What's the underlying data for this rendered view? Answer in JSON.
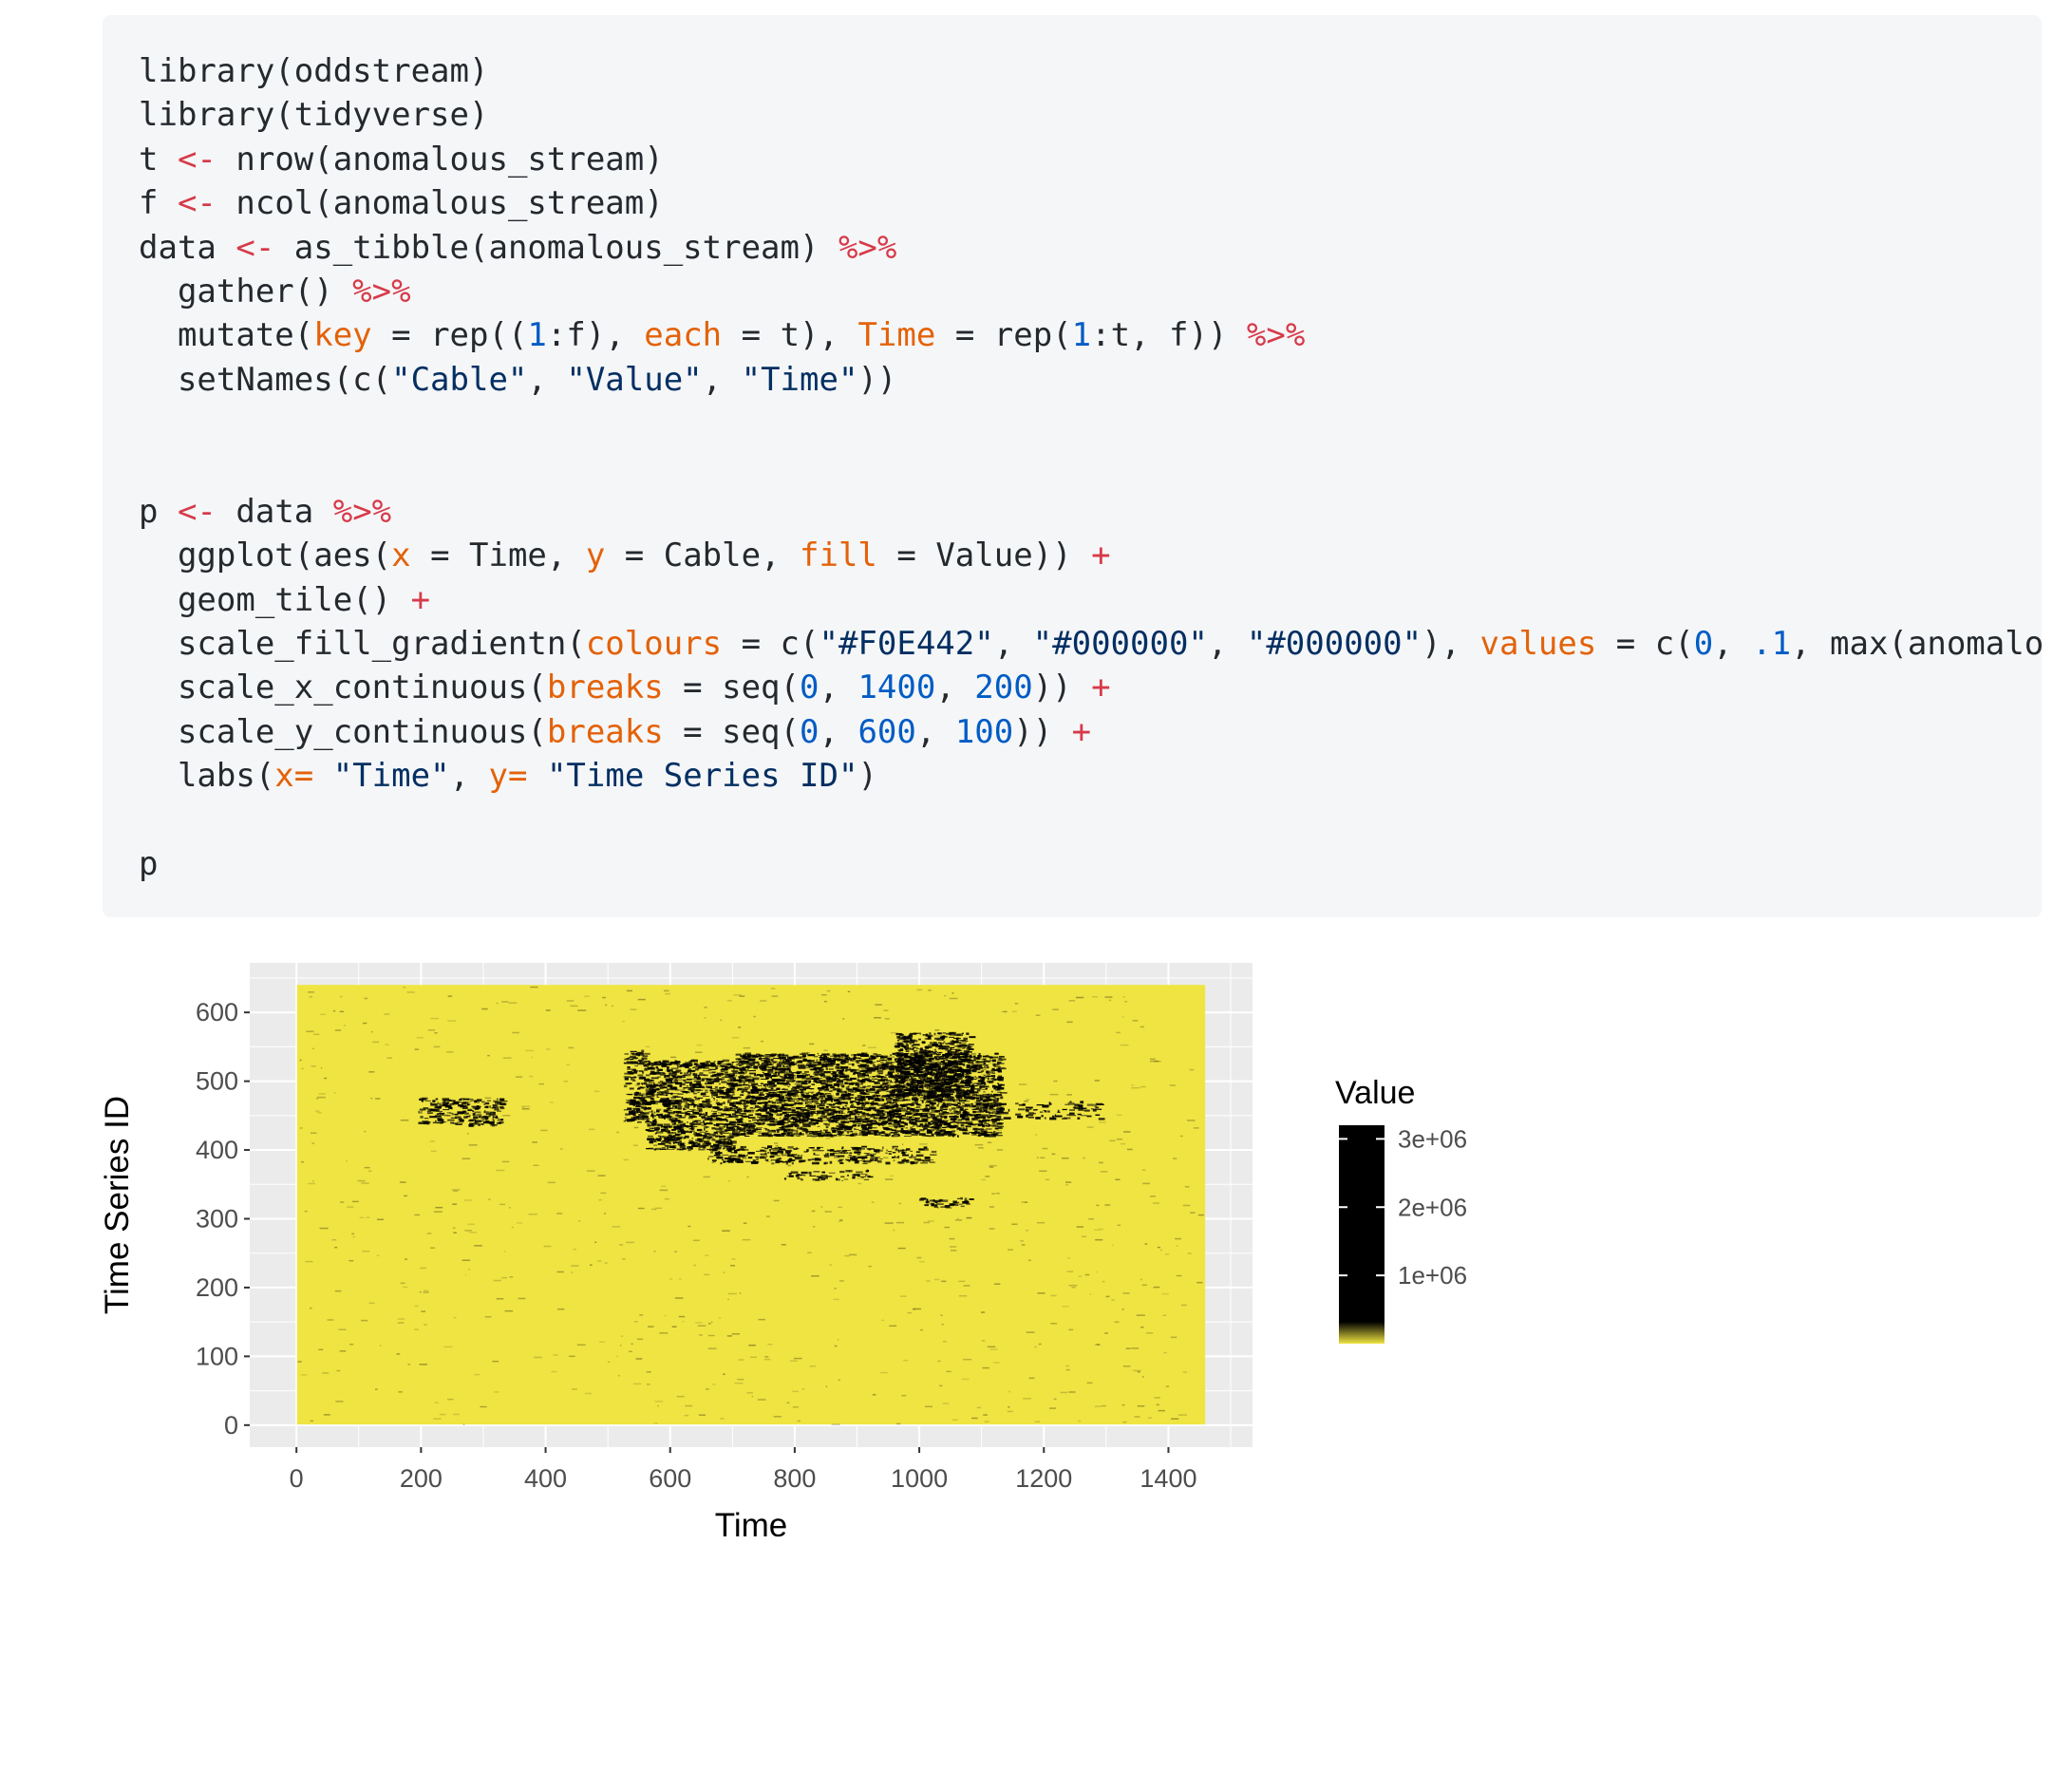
{
  "code": {
    "lines": [
      [
        {
          "t": "library(oddstream)"
        }
      ],
      [
        {
          "t": "library(tidyverse)"
        }
      ],
      [
        {
          "t": "t "
        },
        {
          "t": "<-",
          "c": "kw"
        },
        {
          "t": " nrow(anomalous_stream)"
        }
      ],
      [
        {
          "t": "f "
        },
        {
          "t": "<-",
          "c": "kw"
        },
        {
          "t": " ncol(anomalous_stream)"
        }
      ],
      [
        {
          "t": "data "
        },
        {
          "t": "<-",
          "c": "kw"
        },
        {
          "t": " as_tibble(anomalous_stream) "
        },
        {
          "t": "%>%",
          "c": "kw"
        }
      ],
      [
        {
          "t": "  gather() "
        },
        {
          "t": "%>%",
          "c": "kw"
        }
      ],
      [
        {
          "t": "  mutate("
        },
        {
          "t": "key",
          "c": "arg"
        },
        {
          "t": " = rep(("
        },
        {
          "t": "1",
          "c": "num"
        },
        {
          "t": ":f), "
        },
        {
          "t": "each",
          "c": "arg"
        },
        {
          "t": " = t), "
        },
        {
          "t": "Time",
          "c": "arg"
        },
        {
          "t": " = rep("
        },
        {
          "t": "1",
          "c": "num"
        },
        {
          "t": ":t, f)) "
        },
        {
          "t": "%>%",
          "c": "kw"
        }
      ],
      [
        {
          "t": "  setNames(c("
        },
        {
          "t": "\"Cable\"",
          "c": "str"
        },
        {
          "t": ", "
        },
        {
          "t": "\"Value\"",
          "c": "str"
        },
        {
          "t": ", "
        },
        {
          "t": "\"Time\"",
          "c": "str"
        },
        {
          "t": "))"
        }
      ],
      [],
      [],
      [
        {
          "t": "p "
        },
        {
          "t": "<-",
          "c": "kw"
        },
        {
          "t": " data "
        },
        {
          "t": "%>%",
          "c": "kw"
        }
      ],
      [
        {
          "t": "  ggplot(aes("
        },
        {
          "t": "x",
          "c": "arg"
        },
        {
          "t": " = Time, "
        },
        {
          "t": "y",
          "c": "arg"
        },
        {
          "t": " = Cable, "
        },
        {
          "t": "fill",
          "c": "arg"
        },
        {
          "t": " = Value)) "
        },
        {
          "t": "+",
          "c": "kw"
        }
      ],
      [
        {
          "t": "  geom_tile() "
        },
        {
          "t": "+",
          "c": "kw"
        }
      ],
      [
        {
          "t": "  scale_fill_gradientn("
        },
        {
          "t": "colours",
          "c": "arg"
        },
        {
          "t": " = c("
        },
        {
          "t": "\"#F0E442\"",
          "c": "str"
        },
        {
          "t": ", "
        },
        {
          "t": "\"#000000\"",
          "c": "str"
        },
        {
          "t": ", "
        },
        {
          "t": "\"#000000\"",
          "c": "str"
        },
        {
          "t": "), "
        },
        {
          "t": "values",
          "c": "arg"
        },
        {
          "t": " = c("
        },
        {
          "t": "0",
          "c": "num"
        },
        {
          "t": ", "
        },
        {
          "t": ".1",
          "c": "num"
        },
        {
          "t": ", max(anomalous_stream"
        }
      ],
      [
        {
          "t": "  scale_x_continuous("
        },
        {
          "t": "breaks",
          "c": "arg"
        },
        {
          "t": " = seq("
        },
        {
          "t": "0",
          "c": "num"
        },
        {
          "t": ", "
        },
        {
          "t": "1400",
          "c": "num"
        },
        {
          "t": ", "
        },
        {
          "t": "200",
          "c": "num"
        },
        {
          "t": ")) "
        },
        {
          "t": "+",
          "c": "kw"
        }
      ],
      [
        {
          "t": "  scale_y_continuous("
        },
        {
          "t": "breaks",
          "c": "arg"
        },
        {
          "t": " = seq("
        },
        {
          "t": "0",
          "c": "num"
        },
        {
          "t": ", "
        },
        {
          "t": "600",
          "c": "num"
        },
        {
          "t": ", "
        },
        {
          "t": "100",
          "c": "num"
        },
        {
          "t": ")) "
        },
        {
          "t": "+",
          "c": "kw"
        }
      ],
      [
        {
          "t": "  labs("
        },
        {
          "t": "x=",
          "c": "arg"
        },
        {
          "t": " "
        },
        {
          "t": "\"Time\"",
          "c": "str"
        },
        {
          "t": ", "
        },
        {
          "t": "y=",
          "c": "arg"
        },
        {
          "t": " "
        },
        {
          "t": "\"Time Series ID\"",
          "c": "str"
        },
        {
          "t": ")"
        }
      ],
      [],
      [
        {
          "t": "p"
        }
      ]
    ]
  },
  "colors": {
    "low": "#F0E442",
    "high": "#000000",
    "panel": "#ebebeb",
    "grid": "#ffffff",
    "tick_text": "#4d4d4d"
  },
  "chart_data": {
    "type": "heatmap",
    "xlabel": "Time",
    "ylabel": "Time Series ID",
    "legend_title": "Value",
    "legend_position": "right",
    "grid": true,
    "xlim": [
      -75,
      1535
    ],
    "ylim": [
      -32,
      672
    ],
    "x_data_range": [
      1,
      1459
    ],
    "y_data_range": [
      1,
      640
    ],
    "x_ticks": [
      0,
      200,
      400,
      600,
      800,
      1000,
      1200,
      1400
    ],
    "x_tick_labels": [
      "0",
      "200",
      "400",
      "600",
      "800",
      "1000",
      "1200",
      "1400"
    ],
    "y_ticks": [
      0,
      100,
      200,
      300,
      400,
      500,
      600
    ],
    "y_tick_labels": [
      "0",
      "100",
      "200",
      "300",
      "400",
      "500",
      "600"
    ],
    "fill_range": [
      0,
      3200000
    ],
    "fill_breaks": [
      1000000,
      2000000,
      3000000
    ],
    "fill_break_labels": [
      "1e+06",
      "2e+06",
      "3e+06"
    ],
    "gradient_stops": [
      [
        0,
        "#F0E442"
      ],
      [
        0.1,
        "#000000"
      ],
      [
        1,
        "#000000"
      ]
    ],
    "anomaly_regions": [
      {
        "x": [
          195,
          330
        ],
        "y": [
          435,
          475
        ],
        "value": 1800000
      },
      {
        "x": [
          525,
          560
        ],
        "y": [
          440,
          545
        ],
        "value": 2200000
      },
      {
        "x": [
          560,
          700
        ],
        "y": [
          400,
          530
        ],
        "value": 2500000
      },
      {
        "x": [
          700,
          1130
        ],
        "y": [
          420,
          540
        ],
        "value": 2800000
      },
      {
        "x": [
          960,
          1080
        ],
        "y": [
          475,
          570
        ],
        "value": 2400000
      },
      {
        "x": [
          660,
          1020
        ],
        "y": [
          380,
          405
        ],
        "value": 1600000
      },
      {
        "x": [
          780,
          920
        ],
        "y": [
          355,
          370
        ],
        "value": 1200000
      },
      {
        "x": [
          1000,
          1080
        ],
        "y": [
          315,
          330
        ],
        "value": 1400000
      },
      {
        "x": [
          1120,
          1290
        ],
        "y": [
          445,
          470
        ],
        "value": 900000
      }
    ]
  }
}
